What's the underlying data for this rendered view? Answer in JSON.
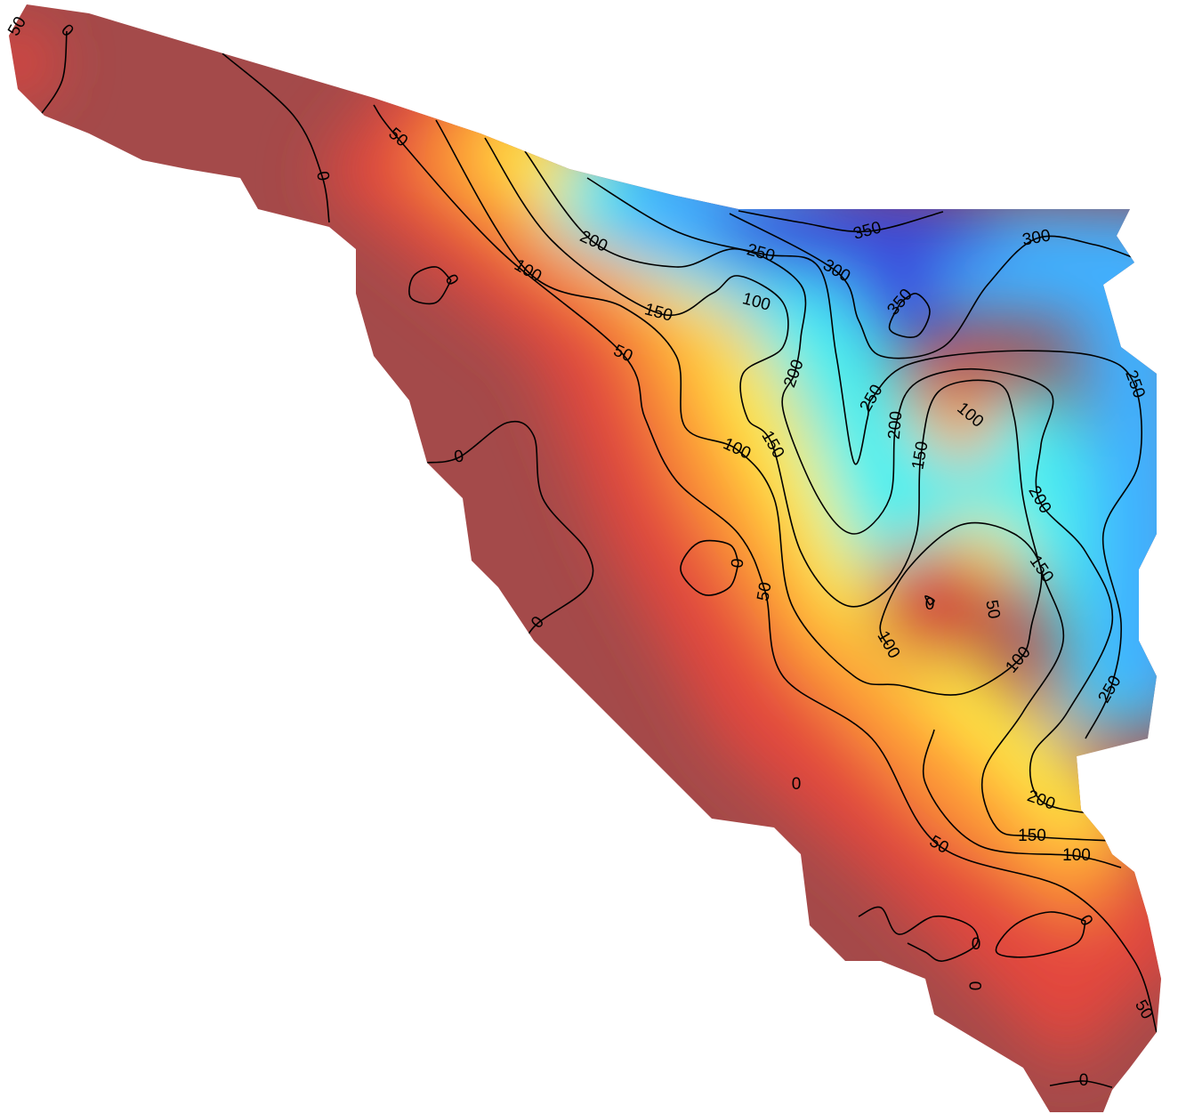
{
  "map": {
    "contour_levels": [
      0,
      50,
      100,
      150,
      200,
      250,
      300,
      350
    ],
    "contour_labels": [
      50,
      0,
      50,
      0,
      0,
      100,
      150,
      200,
      250,
      350,
      300,
      300,
      350,
      100,
      50,
      200,
      250,
      250,
      200,
      100,
      150,
      0,
      100,
      150,
      200,
      0,
      150,
      50,
      0,
      50,
      0,
      100,
      100,
      250,
      0,
      200,
      150,
      50,
      100,
      0,
      0,
      0,
      50,
      0
    ]
  }
}
